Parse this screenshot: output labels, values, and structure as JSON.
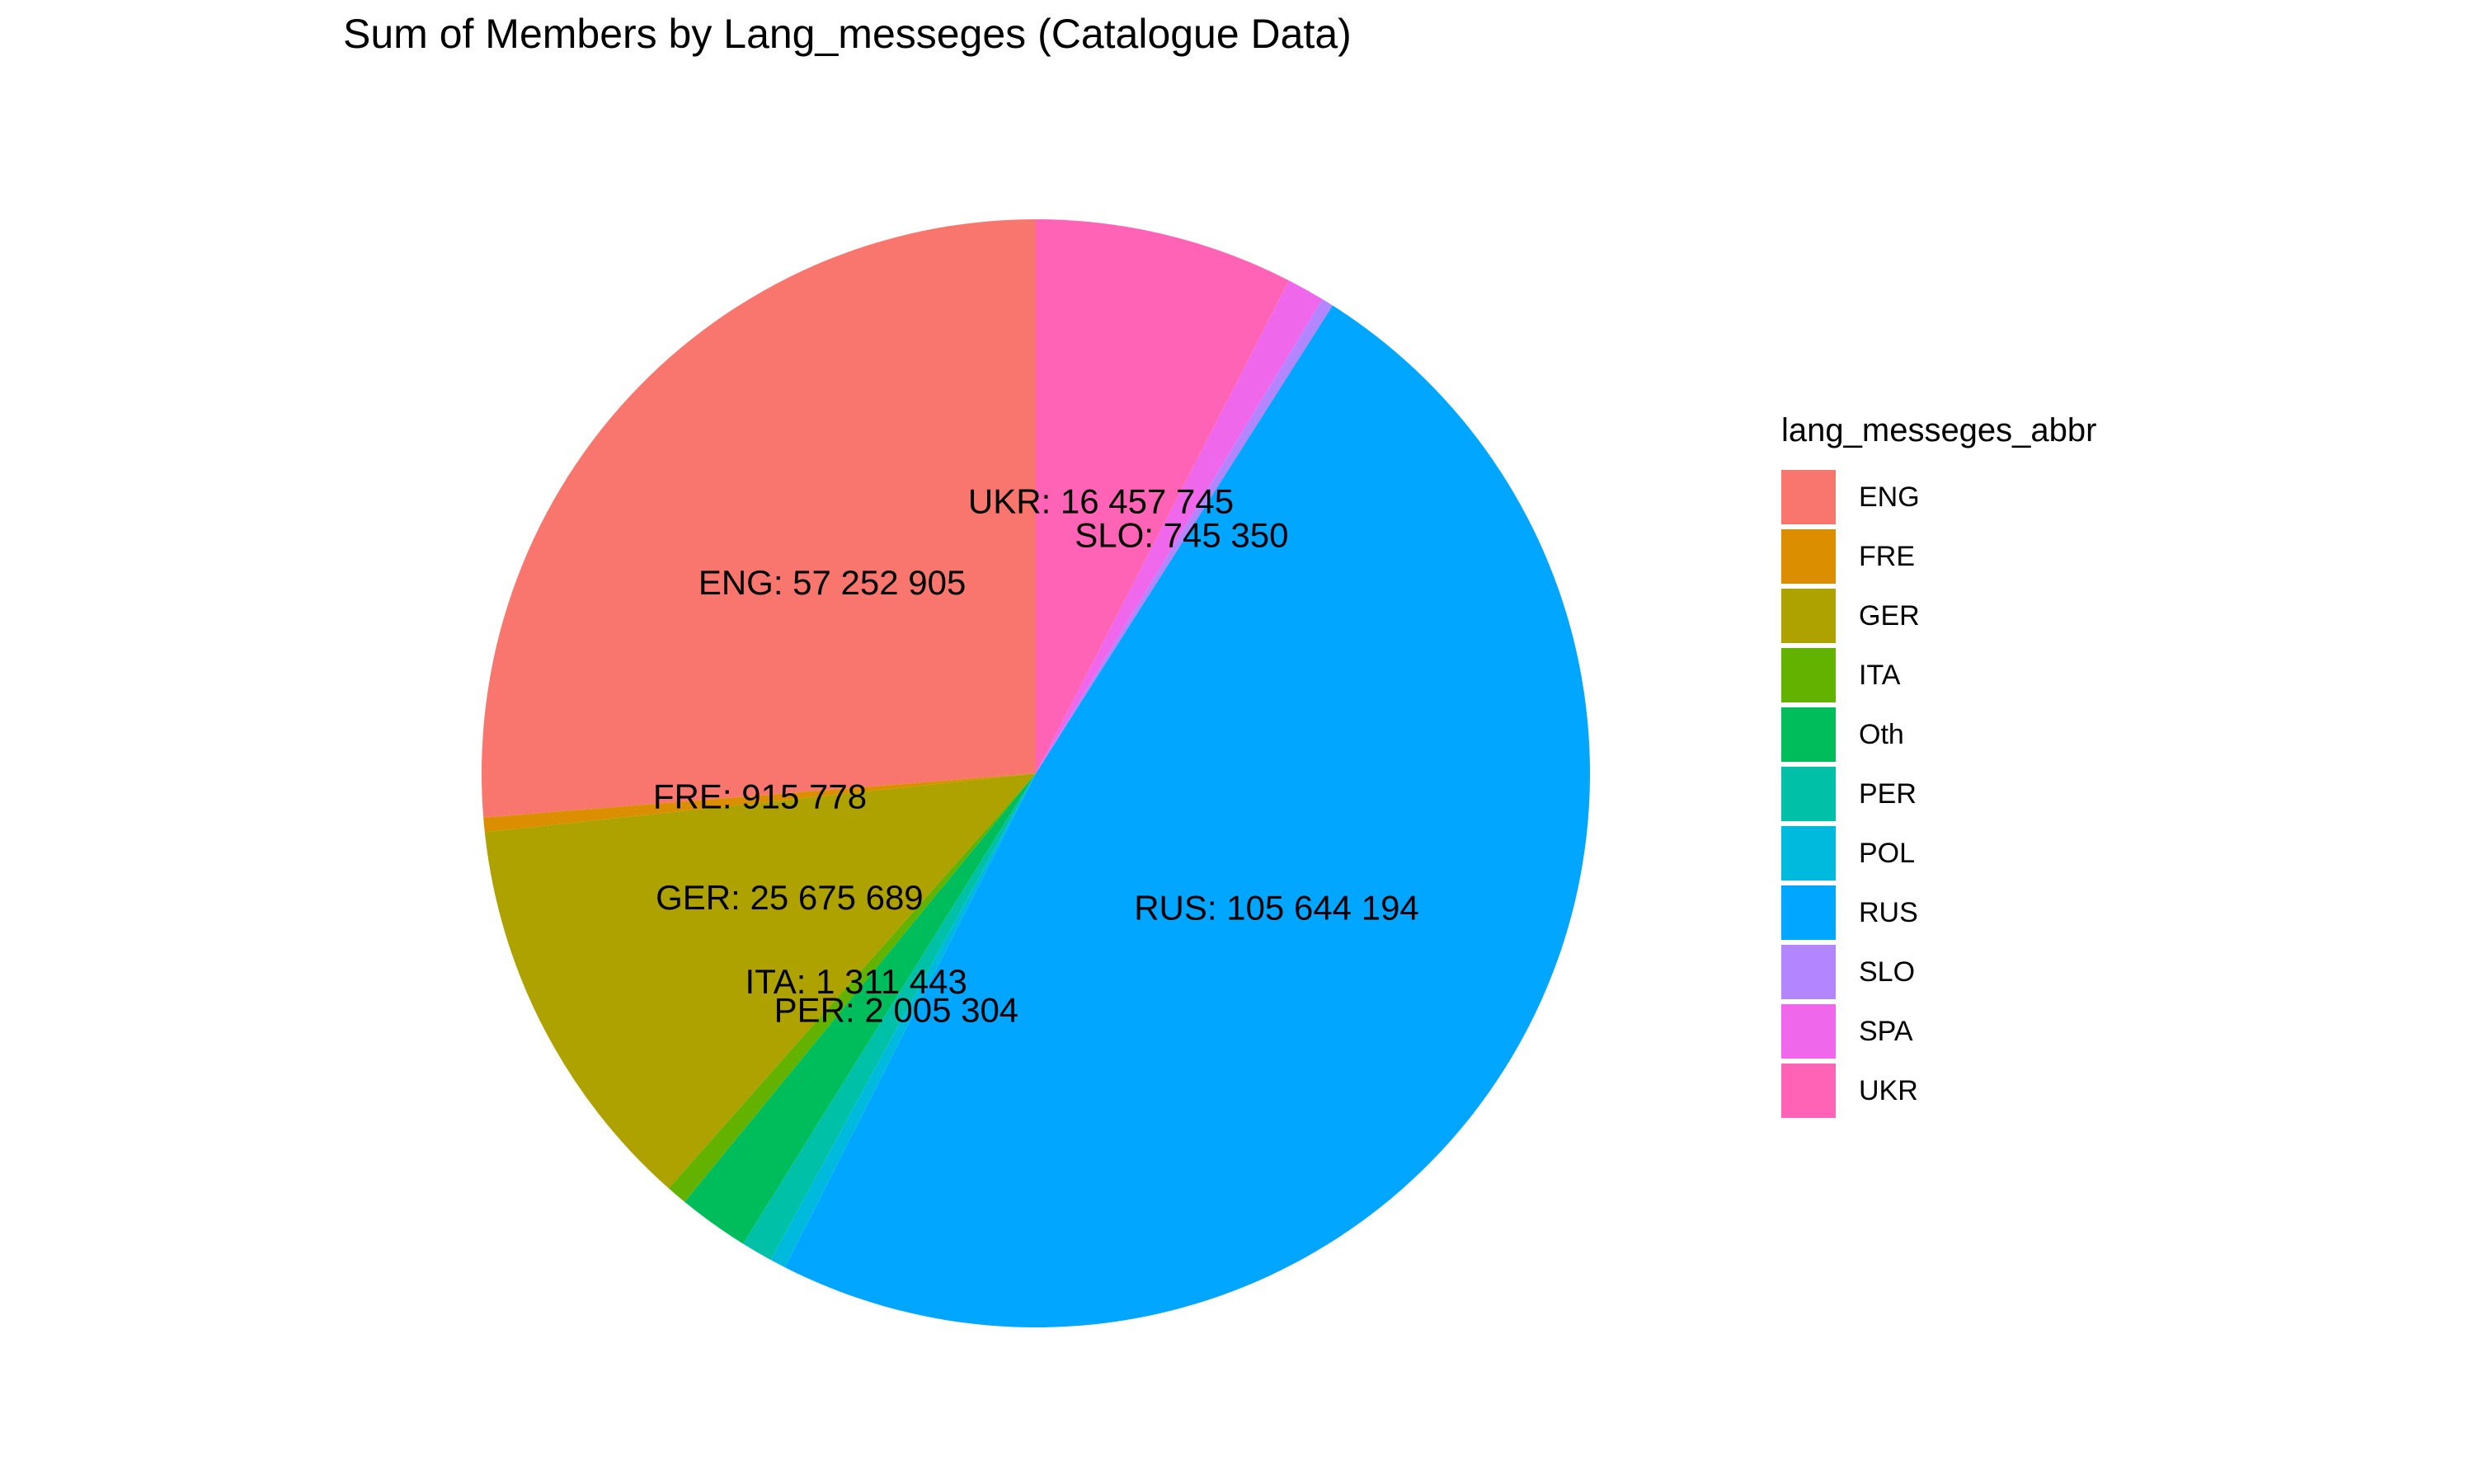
{
  "chart_data": {
    "type": "pie",
    "title": "Sum of Members by Lang_messeges (Catalogue Data)",
    "legend_title": "lang_messeges_abbr",
    "legend_position": "right",
    "categories": [
      "ENG",
      "FRE",
      "GER",
      "ITA",
      "Oth",
      "PER",
      "POL",
      "RUS",
      "SLO",
      "SPA",
      "UKR"
    ],
    "values": [
      57252905,
      915778,
      25675689,
      1311443,
      4500000,
      2005304,
      1000000,
      105644194,
      745350,
      2400000,
      16457745
    ],
    "colors": [
      "#F8766D",
      "#DB8E00",
      "#AEA200",
      "#64B200",
      "#00BD5C",
      "#00C1A7",
      "#00BADE",
      "#00A6FF",
      "#B385FF",
      "#EF67EB",
      "#FF63B6"
    ],
    "labels": [
      {
        "category": "ENG",
        "text": "ENG: 57 252 905"
      },
      {
        "category": "FRE",
        "text": "FRE: 915 778"
      },
      {
        "category": "GER",
        "text": "GER: 25 675 689"
      },
      {
        "category": "ITA",
        "text": "ITA: 1 311 443"
      },
      {
        "category": "PER",
        "text": "PER: 2 005 304"
      },
      {
        "category": "RUS",
        "text": "RUS: 105 644 194"
      },
      {
        "category": "SLO",
        "text": "SLO: 745 350"
      },
      {
        "category": "UKR",
        "text": "UKR: 16 457 745"
      }
    ]
  }
}
